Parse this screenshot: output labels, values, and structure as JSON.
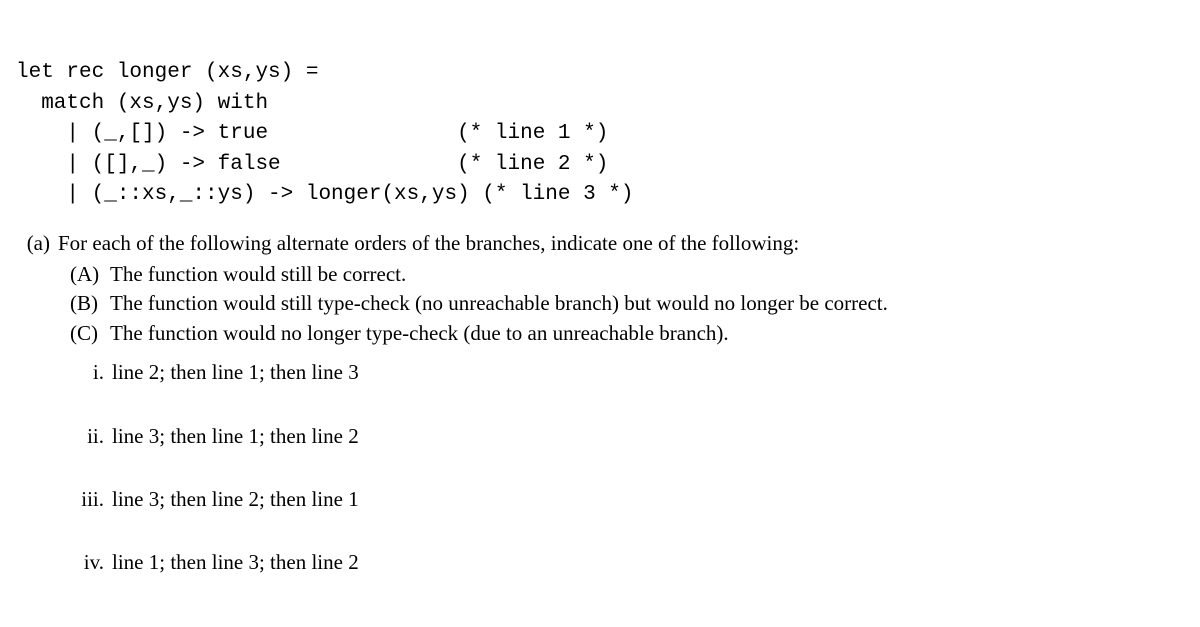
{
  "code": {
    "l1": "let rec longer (xs,ys) =",
    "l2": "  match (xs,ys) with",
    "l3a": "    | (_,[]) -> true",
    "l3b": "(* line 1 *)",
    "l4a": "    | ([],_) -> false",
    "l4b": "(* line 2 *)",
    "l5": "    | (_::xs,_::ys) -> longer(xs,ys) (* line 3 *)"
  },
  "question": {
    "label": "(a)",
    "lead": "For each of the following alternate orders of the branches, indicate one of the following:",
    "options": [
      {
        "label": "(A)",
        "text": "The function would still be correct."
      },
      {
        "label": "(B)",
        "text": "The function would still type-check (no unreachable branch) but would no longer be correct."
      },
      {
        "label": "(C)",
        "text": "The function would no longer type-check (due to an unreachable branch)."
      }
    ],
    "subs": [
      {
        "label": "i.",
        "text": "line 2; then line 1; then line 3"
      },
      {
        "label": "ii.",
        "text": "line 3; then line 1; then line 2"
      },
      {
        "label": "iii.",
        "text": "line 3; then line 2; then line 1"
      },
      {
        "label": "iv.",
        "text": "line 1; then line 3; then line 2"
      }
    ]
  }
}
